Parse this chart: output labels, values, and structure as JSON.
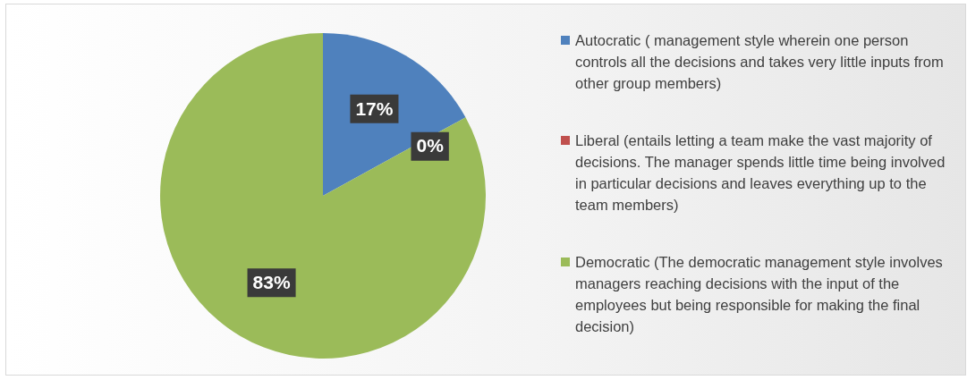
{
  "chart_data": {
    "type": "pie",
    "categories": [
      "Autocratic ( management style wherein one person controls all the decisions and takes very little inputs from other group members)",
      "Liberal (entails letting a team make the vast majority of decisions. The manager spends little time being involved in particular decisions and leaves everything up to the team members)",
      "Democratic (The democratic management style involves managers reaching decisions with the input of the employees but being responsible for making the final decision)"
    ],
    "values": [
      17,
      0,
      83
    ],
    "colors": [
      "#4f81bd",
      "#c0504d",
      "#9bbb59"
    ],
    "value_labels": [
      "17%",
      "0%",
      "83%"
    ],
    "legend": "right"
  }
}
